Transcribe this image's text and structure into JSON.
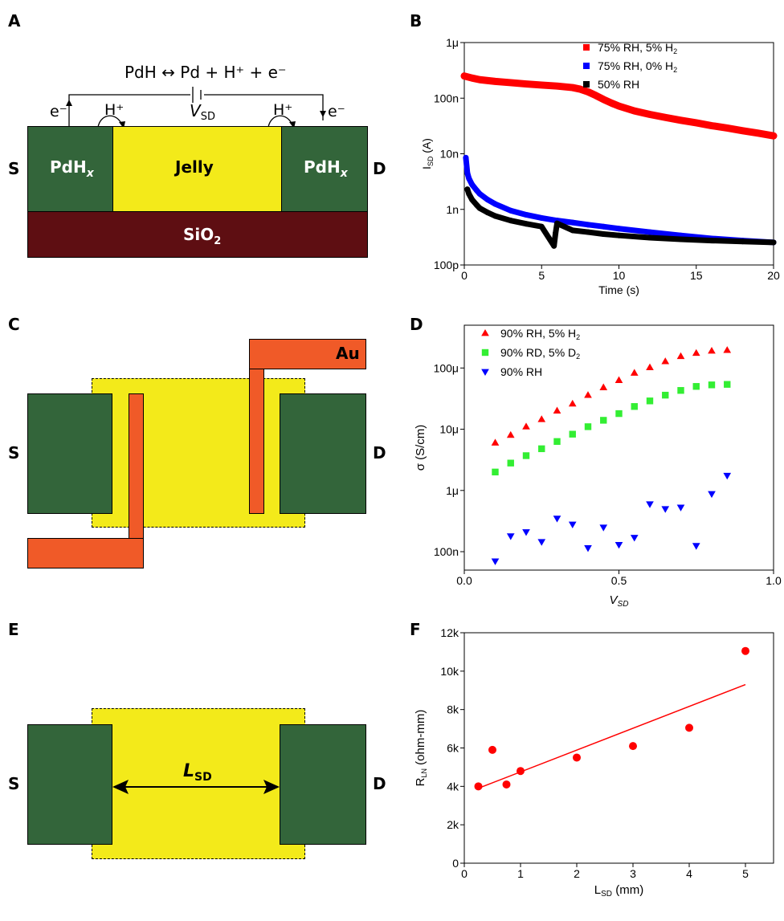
{
  "panels": {
    "A": {
      "letter": "A",
      "equation": "PdH ↔ Pd + H⁺ + e⁻",
      "e_left": "e⁻",
      "e_right": "e⁻",
      "h_left": "H⁺",
      "h_right": "H⁺",
      "vsd": "V",
      "vsd_sub": "SD",
      "s": "S",
      "d": "D",
      "pdh_left": "PdH",
      "pdh_right": "PdH",
      "pdh_sub": "x",
      "jelly": "Jelly",
      "sio2": "SiO",
      "sio2_sub": "2"
    },
    "B": {
      "letter": "B"
    },
    "C": {
      "letter": "C",
      "s": "S",
      "d": "D",
      "au": "Au"
    },
    "D": {
      "letter": "D"
    },
    "E": {
      "letter": "E",
      "s": "S",
      "d": "D",
      "lsd": "L",
      "lsd_sub": "SD"
    },
    "F": {
      "letter": "F"
    }
  },
  "chart_data": [
    {
      "id": "B",
      "type": "scatter",
      "xlabel": "Time (s)",
      "ylabel": "I",
      "ylabel_sub": "SD",
      "ylabel_unit": "(A)",
      "xlim": [
        0,
        20
      ],
      "ylim": [
        1e-10,
        1e-06
      ],
      "yscale": "log",
      "xticks": [
        0,
        5,
        10,
        15,
        20
      ],
      "xtick_labels": [
        "0",
        "5",
        "10",
        "15",
        "20"
      ],
      "yticks": [
        1e-10,
        1e-09,
        1e-08,
        1e-07,
        1e-06
      ],
      "ytick_labels": [
        "100p",
        "1n",
        "10n",
        "100n",
        "1μ"
      ],
      "legend_position": "top-right",
      "series": [
        {
          "name": "75% RH, 5% H",
          "name_sub": "2",
          "color": "#ff0000",
          "x": [
            0,
            0.5,
            1,
            2,
            3,
            4,
            5,
            6,
            7,
            7.5,
            8,
            8.5,
            9,
            9.5,
            10,
            11,
            12,
            13,
            14,
            15,
            16,
            17,
            18,
            19,
            20
          ],
          "y": [
            2.5e-07,
            2.3e-07,
            2.15e-07,
            2e-07,
            1.9e-07,
            1.8e-07,
            1.72e-07,
            1.65e-07,
            1.55e-07,
            1.45e-07,
            1.3e-07,
            1.12e-07,
            9.5e-08,
            8.2e-08,
            7.2e-08,
            5.9e-08,
            5.1e-08,
            4.5e-08,
            4e-08,
            3.6e-08,
            3.2e-08,
            2.9e-08,
            2.6e-08,
            2.35e-08,
            2.1e-08
          ]
        },
        {
          "name": "75% RH, 0% H",
          "name_sub": "2",
          "color": "#0000ff",
          "x": [
            0.1,
            0.2,
            0.3,
            0.5,
            0.8,
            1,
            1.5,
            2,
            3,
            4,
            5,
            6,
            7,
            8,
            9,
            10,
            12,
            14,
            16,
            18,
            20
          ],
          "y": [
            8.5e-09,
            4.5e-09,
            3.6e-09,
            2.8e-09,
            2.2e-09,
            1.9e-09,
            1.5e-09,
            1.25e-09,
            9.5e-10,
            8e-10,
            7e-10,
            6.3e-10,
            5.8e-10,
            5.3e-10,
            4.9e-10,
            4.5e-10,
            3.9e-10,
            3.4e-10,
            3e-10,
            2.75e-10,
            2.55e-10
          ]
        },
        {
          "name": "50% RH",
          "color": "#000000",
          "x": [
            0.2,
            0.3,
            0.5,
            0.8,
            1,
            1.5,
            2,
            3,
            4,
            5,
            5.8,
            5.9,
            6,
            7,
            8,
            9,
            10,
            12,
            14,
            16,
            18,
            20
          ],
          "y": [
            2.3e-09,
            1.9e-09,
            1.5e-09,
            1.2e-09,
            1.05e-09,
            8.8e-10,
            7.6e-10,
            6.3e-10,
            5.5e-10,
            4.9e-10,
            2.2e-10,
            3.7e-10,
            5.6e-10,
            4.2e-10,
            3.9e-10,
            3.6e-10,
            3.4e-10,
            3.1e-10,
            2.9e-10,
            2.75e-10,
            2.65e-10,
            2.55e-10
          ]
        }
      ]
    },
    {
      "id": "D",
      "type": "scatter",
      "xlabel": "V",
      "xlabel_sub": "SD",
      "ylabel": "σ",
      "ylabel_unit": "(S/cm)",
      "xlim": [
        0,
        1
      ],
      "ylim": [
        5e-08,
        0.0005
      ],
      "yscale": "log",
      "xticks": [
        0,
        0.5,
        1
      ],
      "xtick_labels": [
        "0.0",
        "0.5",
        "1.0"
      ],
      "yticks": [
        1e-07,
        1e-06,
        1e-05,
        0.0001
      ],
      "ytick_labels": [
        "100n",
        "1μ",
        "10μ",
        "100μ"
      ],
      "legend_position": "top-left",
      "series": [
        {
          "name": "90% RH, 5% H",
          "name_sub": "2",
          "color": "#ff0000",
          "marker": "triangle-up",
          "x": [
            0.1,
            0.15,
            0.2,
            0.25,
            0.3,
            0.35,
            0.4,
            0.45,
            0.5,
            0.55,
            0.6,
            0.65,
            0.7,
            0.75,
            0.8,
            0.85
          ],
          "y": [
            6e-06,
            8e-06,
            1.1e-05,
            1.45e-05,
            2e-05,
            2.6e-05,
            3.6e-05,
            4.8e-05,
            6.3e-05,
            8.3e-05,
            0.000102,
            0.000128,
            0.000155,
            0.000175,
            0.00019,
            0.000195
          ]
        },
        {
          "name": "90% RD, 5% D",
          "name_sub": "2",
          "color": "#33ee33",
          "marker": "square",
          "x": [
            0.1,
            0.15,
            0.2,
            0.25,
            0.3,
            0.35,
            0.4,
            0.45,
            0.5,
            0.55,
            0.6,
            0.65,
            0.7,
            0.75,
            0.8,
            0.85
          ],
          "y": [
            2e-06,
            2.8e-06,
            3.7e-06,
            4.8e-06,
            6.3e-06,
            8.3e-06,
            1.1e-05,
            1.4e-05,
            1.8e-05,
            2.35e-05,
            2.9e-05,
            3.6e-05,
            4.3e-05,
            5e-05,
            5.3e-05,
            5.4e-05
          ]
        },
        {
          "name": "90% RH",
          "color": "#0000ff",
          "marker": "triangle-down",
          "x": [
            0.1,
            0.15,
            0.2,
            0.25,
            0.3,
            0.35,
            0.4,
            0.45,
            0.5,
            0.55,
            0.6,
            0.65,
            0.7,
            0.75,
            0.8,
            0.85
          ],
          "y": [
            7e-08,
            1.8e-07,
            2.1e-07,
            1.45e-07,
            3.5e-07,
            2.8e-07,
            1.15e-07,
            2.5e-07,
            1.3e-07,
            1.7e-07,
            6e-07,
            5e-07,
            5.3e-07,
            1.25e-07,
            8.8e-07,
            1.75e-06
          ]
        }
      ]
    },
    {
      "id": "F",
      "type": "scatter",
      "xlabel": "L",
      "xlabel_sub": "SD",
      "xlabel_unit": "(mm)",
      "ylabel": "R",
      "ylabel_sub": "LN",
      "ylabel_unit": "(ohm-mm)",
      "xlim": [
        0,
        5.5
      ],
      "ylim": [
        0,
        12000
      ],
      "xticks": [
        0,
        1,
        2,
        3,
        4,
        5
      ],
      "xtick_labels": [
        "0",
        "1",
        "2",
        "3",
        "4",
        "5"
      ],
      "yticks": [
        0,
        2000,
        4000,
        6000,
        8000,
        10000,
        12000
      ],
      "ytick_labels": [
        "0",
        "2k",
        "4k",
        "6k",
        "8k",
        "10k",
        "12k"
      ],
      "color": "#ff0000",
      "x": [
        0.25,
        0.5,
        0.75,
        1,
        2,
        3,
        4,
        5
      ],
      "y": [
        4000,
        5900,
        4100,
        4800,
        5500,
        6100,
        7050,
        11050
      ],
      "fit_x": [
        0.25,
        5
      ],
      "fit_y": [
        3900,
        9300
      ]
    }
  ]
}
